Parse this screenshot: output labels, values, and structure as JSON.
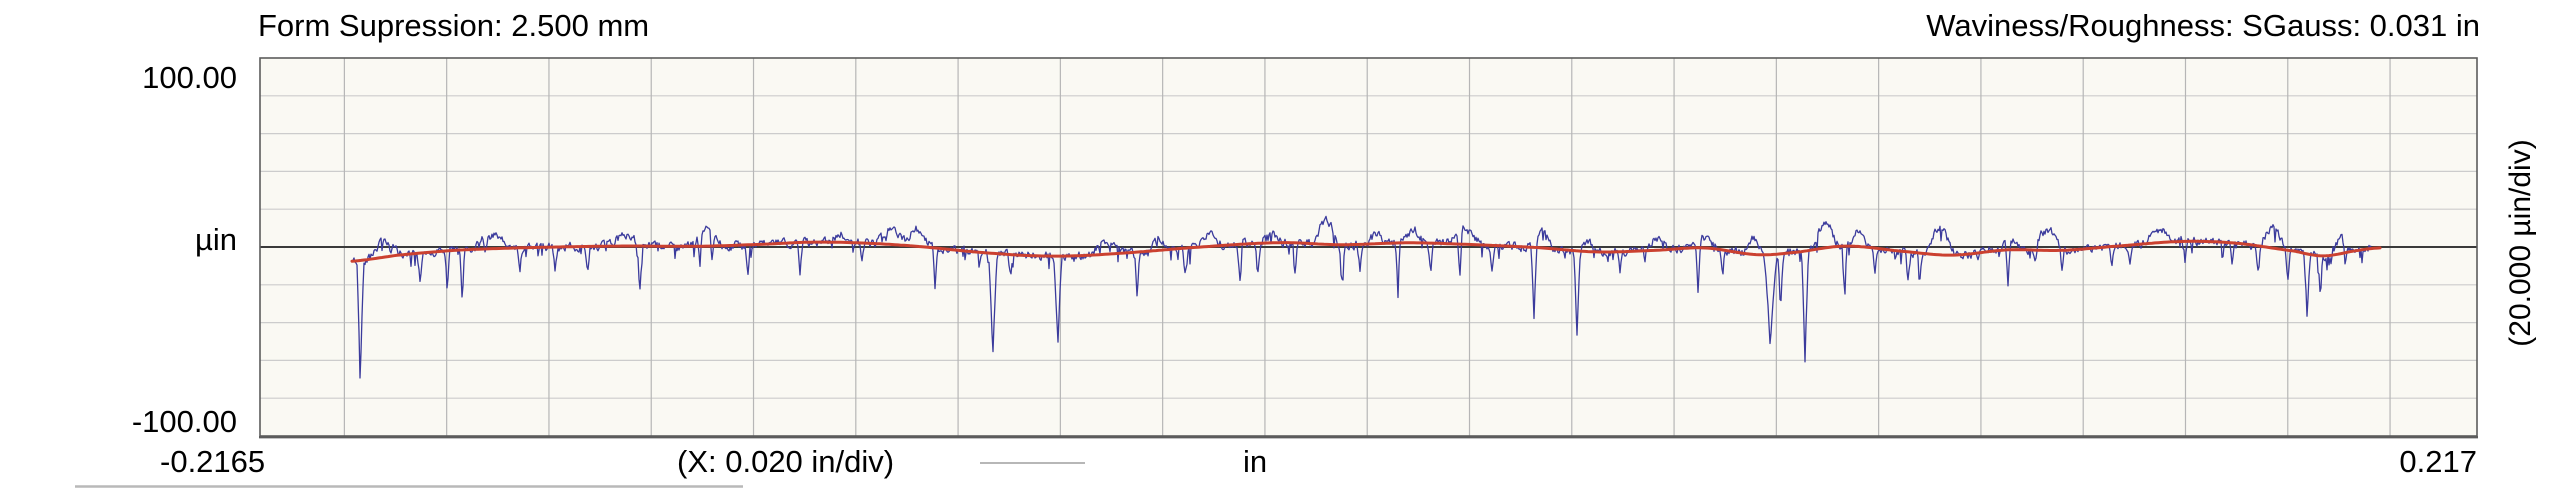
{
  "header": {
    "left_title": "Form Supression: 2.500 mm",
    "right_title": "Waviness/Roughness: SGauss: 0.031 in"
  },
  "axes": {
    "y_max_label": "100.00",
    "y_unit_label": "µin",
    "y_min_label": "-100.00",
    "y_div_label": "(20.000 µin/div)",
    "x_min_label": "-0.2165",
    "x_div_label": "(X: 0.020 in/div)",
    "x_unit_label": "in",
    "x_max_label": "0.217"
  },
  "colors": {
    "page_bg": "#ffffff",
    "plot_bg": "#faf9f3",
    "grid_horizontal": "#cccccc",
    "grid_vertical": "#b6b6b6",
    "zero_axis": "#3a3a3a",
    "border": "#5c5c5c",
    "roughness": "#3b3b9c",
    "waviness": "#cb4130",
    "legend_dash": "#9f9f9f",
    "bottom_rule": "#b9b9b9"
  },
  "chart_data": {
    "type": "line",
    "title": "Form Supression: 2.500 mm — Waviness/Roughness: SGauss: 0.031 in",
    "xlabel": "in",
    "ylabel": "µin",
    "xlim": [
      -0.2165,
      0.217
    ],
    "ylim": [
      -100,
      100
    ],
    "x_div_in": 0.02,
    "y_div_uin": 20.0,
    "grid": true,
    "series": [
      {
        "name": "roughness_profile",
        "color": "#3b3b9c",
        "x_start": -0.1983,
        "x_end": 0.1963,
        "noise_sd_uin": 1.6,
        "seed": 42,
        "spikes_x_in_depth_uin_halfwidth_in": [
          [
            -0.1969,
            -67,
            0.0007
          ],
          [
            -0.191,
            -8,
            0.00055
          ],
          [
            -0.1852,
            -18,
            0.00055
          ],
          [
            -0.1799,
            -20,
            0.00055
          ],
          [
            -0.177,
            -24,
            0.00055
          ],
          [
            -0.1725,
            -8,
            0.00055
          ],
          [
            -0.1657,
            -14,
            0.00055
          ],
          [
            -0.1588,
            -12,
            0.00055
          ],
          [
            -0.1524,
            -13,
            0.00055
          ],
          [
            -0.1422,
            -25,
            0.00055
          ],
          [
            -0.1305,
            -17,
            0.00055
          ],
          [
            -0.1281,
            -14,
            0.00055
          ],
          [
            -0.1211,
            -15,
            0.00055
          ],
          [
            -0.1109,
            -17,
            0.00055
          ],
          [
            -0.0988,
            -8,
            0.00055
          ],
          [
            -0.0845,
            -22,
            0.00055
          ],
          [
            -0.0732,
            -53,
            0.0009
          ],
          [
            -0.0698,
            -12,
            0.00055
          ],
          [
            -0.0605,
            -48,
            0.0008
          ],
          [
            -0.045,
            -23,
            0.00055
          ],
          [
            -0.0356,
            -14,
            0.00055
          ],
          [
            -0.0249,
            -21,
            0.00055
          ],
          [
            -0.0213,
            -16,
            0.00055
          ],
          [
            -0.0141,
            -16,
            0.00055
          ],
          [
            -0.0049,
            -19,
            0.00055
          ],
          [
            -0.0014,
            -14,
            0.00055
          ],
          [
            0.006,
            -25,
            0.00055
          ],
          [
            0.0123,
            -13,
            0.00055
          ],
          [
            0.0181,
            -24,
            0.00055
          ],
          [
            0.0244,
            -12,
            0.00055
          ],
          [
            0.0326,
            -43,
            0.0007
          ],
          [
            0.041,
            -45,
            0.0007
          ],
          [
            0.0494,
            -11,
            0.00055
          ],
          [
            0.0647,
            -28,
            0.00055
          ],
          [
            0.0695,
            -12,
            0.00055
          ],
          [
            0.0788,
            -49,
            0.0013
          ],
          [
            0.0808,
            -30,
            0.0006
          ],
          [
            0.0856,
            -58,
            0.0007
          ],
          [
            0.0934,
            -20,
            0.00055
          ],
          [
            0.0993,
            -13,
            0.00055
          ],
          [
            0.1057,
            -16,
            0.00055
          ],
          [
            0.1081,
            -13,
            0.00055
          ],
          [
            0.1253,
            -26,
            0.00055
          ],
          [
            0.1306,
            -10,
            0.00055
          ],
          [
            0.1359,
            -13,
            0.00055
          ],
          [
            0.1456,
            -11,
            0.00055
          ],
          [
            0.1492,
            -9,
            0.00055
          ],
          [
            0.1599,
            -10,
            0.00055
          ],
          [
            0.1691,
            -12,
            0.00055
          ],
          [
            0.1742,
            -14,
            0.00055
          ],
          [
            0.18,
            -15,
            0.00055
          ],
          [
            0.1838,
            -34,
            0.0007
          ],
          [
            0.1863,
            -18,
            0.00055
          ],
          [
            0.1912,
            -12,
            0.00055
          ]
        ],
        "bumps_x_in_height_uin_halfwidth_in": [
          [
            -0.1922,
            8,
            0.004
          ],
          [
            -0.1713,
            7,
            0.0045
          ],
          [
            -0.145,
            6,
            0.004
          ],
          [
            -0.129,
            9,
            0.0035
          ],
          [
            -0.103,
            4,
            0.002
          ],
          [
            -0.093,
            8,
            0.0035
          ],
          [
            -0.088,
            9,
            0.0035
          ],
          [
            -0.0508,
            7,
            0.004
          ],
          [
            -0.0407,
            5,
            0.0025
          ],
          [
            -0.031,
            6,
            0.003
          ],
          [
            -0.019,
            5,
            0.0025
          ],
          [
            -0.008,
            13,
            0.003
          ],
          [
            0.0017,
            5,
            0.002
          ],
          [
            0.009,
            7,
            0.0028
          ],
          [
            0.019,
            8,
            0.004
          ],
          [
            0.034,
            9,
            0.0028
          ],
          [
            0.043,
            5,
            0.002
          ],
          [
            0.057,
            7,
            0.0028
          ],
          [
            0.066,
            6,
            0.0032
          ],
          [
            0.0755,
            8,
            0.0022
          ],
          [
            0.0895,
            13,
            0.0032
          ],
          [
            0.096,
            7,
            0.0025
          ],
          [
            0.112,
            14,
            0.0035
          ],
          [
            0.1255,
            6,
            0.0025
          ],
          [
            0.133,
            11,
            0.0035
          ],
          [
            0.155,
            7,
            0.0035
          ],
          [
            0.177,
            11,
            0.003
          ],
          [
            0.1905,
            8,
            0.0025
          ]
        ]
      },
      {
        "name": "waviness",
        "color": "#cb4130",
        "points_x_in_y_uin": [
          [
            -0.1985,
            -7.5
          ],
          [
            -0.1891,
            -4.2
          ],
          [
            -0.1774,
            -1.6
          ],
          [
            -0.1637,
            -0.3
          ],
          [
            -0.1461,
            0.5
          ],
          [
            -0.1304,
            0.4
          ],
          [
            -0.1187,
            1.4
          ],
          [
            -0.1069,
            2.6
          ],
          [
            -0.0913,
            1.0
          ],
          [
            -0.0717,
            -3.6
          ],
          [
            -0.06,
            -4.8
          ],
          [
            -0.0483,
            -3.3
          ],
          [
            -0.0326,
            0.0
          ],
          [
            -0.017,
            2.3
          ],
          [
            -0.0052,
            1.2
          ],
          [
            0.0074,
            2.2
          ],
          [
            0.017,
            1.6
          ],
          [
            0.0327,
            -0.2
          ],
          [
            0.045,
            -2.6
          ],
          [
            0.056,
            -1.8
          ],
          [
            0.066,
            -0.5
          ],
          [
            0.076,
            -4.0
          ],
          [
            0.083,
            -3.0
          ],
          [
            0.0935,
            0.5
          ],
          [
            0.1052,
            -2.4
          ],
          [
            0.1145,
            -4.3
          ],
          [
            0.1253,
            -1.5
          ],
          [
            0.1355,
            -1.8
          ],
          [
            0.1453,
            0.2
          ],
          [
            0.159,
            2.9
          ],
          [
            0.17,
            2.0
          ],
          [
            0.1814,
            -2.2
          ],
          [
            0.187,
            -4.7
          ],
          [
            0.194,
            -1.7
          ],
          [
            0.198,
            -0.5
          ]
        ]
      }
    ]
  }
}
